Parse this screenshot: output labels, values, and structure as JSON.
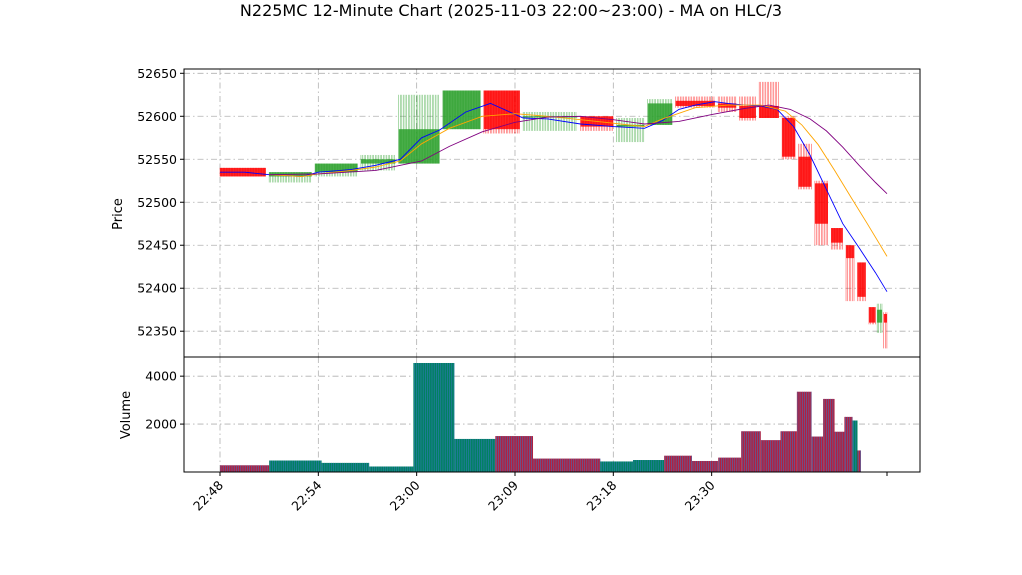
{
  "chart_data": [
    {
      "type": "candlestick",
      "title": "N225MC 12-Minute Chart (2025-11-03 22:00~23:00) - MA on HLC/3",
      "ylabel": "Price",
      "ylim": [
        52320,
        52655
      ],
      "yticks": [
        52350,
        52400,
        52450,
        52500,
        52550,
        52600,
        52650
      ],
      "grid": true,
      "x_ticks": [
        {
          "time": "22:48",
          "bar": 0
        },
        {
          "time": "22:54",
          "bar": 6
        },
        {
          "time": "23:00",
          "bar": 12
        },
        {
          "time": "23:09",
          "bar": 18
        },
        {
          "time": "23:18",
          "bar": 24
        },
        {
          "time": "23:30",
          "bar": 30
        }
      ],
      "up_color": "#2ca02c",
      "down_color": "#ff0000",
      "ma_colors": [
        "#0000ff",
        "#ffa500",
        "#800080"
      ],
      "candles": [
        {
          "from": 0.0,
          "to": 2.8,
          "open": 52540,
          "high": 52540,
          "low": 52530,
          "close": 52530
        },
        {
          "from": 3.0,
          "to": 5.6,
          "open": 52530,
          "high": 52535,
          "low": 52523,
          "close": 52535
        },
        {
          "from": 5.8,
          "to": 8.4,
          "open": 52535,
          "high": 52545,
          "low": 52530,
          "close": 52545
        },
        {
          "from": 8.6,
          "to": 10.7,
          "open": 52545,
          "high": 52555,
          "low": 52537,
          "close": 52550
        },
        {
          "from": 10.9,
          "to": 13.4,
          "open": 52545,
          "high": 52625,
          "low": 52545,
          "close": 52585
        },
        {
          "from": 13.6,
          "to": 15.9,
          "open": 52585,
          "high": 52630,
          "low": 52585,
          "close": 52630
        },
        {
          "from": 16.1,
          "to": 18.3,
          "open": 52630,
          "high": 52630,
          "low": 52580,
          "close": 52585
        },
        {
          "from": 18.5,
          "to": 21.8,
          "open": 52600,
          "high": 52605,
          "low": 52583,
          "close": 52600
        },
        {
          "from": 22.0,
          "to": 24.0,
          "open": 52600,
          "high": 52600,
          "low": 52583,
          "close": 52588
        },
        {
          "from": 24.2,
          "to": 25.9,
          "open": 52588,
          "high": 52598,
          "low": 52570,
          "close": 52590
        },
        {
          "from": 26.1,
          "to": 27.6,
          "open": 52590,
          "high": 52620,
          "low": 52590,
          "close": 52615
        },
        {
          "from": 27.8,
          "to": 30.2,
          "open": 52618,
          "high": 52623,
          "low": 52610,
          "close": 52612
        },
        {
          "from": 30.4,
          "to": 31.5,
          "open": 52615,
          "high": 52623,
          "low": 52605,
          "close": 52610
        },
        {
          "from": 31.7,
          "to": 32.7,
          "open": 52612,
          "high": 52623,
          "low": 52595,
          "close": 52598
        },
        {
          "from": 32.9,
          "to": 34.1,
          "open": 52612,
          "high": 52640,
          "low": 52598,
          "close": 52598
        },
        {
          "from": 34.3,
          "to": 35.1,
          "open": 52598,
          "high": 52600,
          "low": 52550,
          "close": 52553
        },
        {
          "from": 35.3,
          "to": 36.1,
          "open": 52553,
          "high": 52568,
          "low": 52515,
          "close": 52518
        },
        {
          "from": 36.3,
          "to": 37.1,
          "open": 52522,
          "high": 52525,
          "low": 52450,
          "close": 52475
        },
        {
          "from": 37.3,
          "to": 38.0,
          "open": 52470,
          "high": 52470,
          "low": 52445,
          "close": 52453
        },
        {
          "from": 38.2,
          "to": 38.7,
          "open": 52450,
          "high": 52450,
          "low": 52385,
          "close": 52435
        },
        {
          "from": 38.9,
          "to": 39.4,
          "open": 52430,
          "high": 52430,
          "low": 52385,
          "close": 52390
        },
        {
          "from": 39.6,
          "to": 40.0,
          "open": 52378,
          "high": 52378,
          "low": 52358,
          "close": 52360
        },
        {
          "from": 40.1,
          "to": 40.4,
          "open": 52360,
          "high": 52382,
          "low": 52348,
          "close": 52375
        },
        {
          "from": 40.5,
          "to": 40.7,
          "open": 52370,
          "high": 52372,
          "low": 52330,
          "close": 52360
        }
      ],
      "ma_series": [
        {
          "x": [
            0,
            1.5,
            3,
            5,
            6,
            8,
            9.5,
            11,
            12.3,
            13.4,
            15,
            16.5,
            18.5,
            20,
            22,
            24,
            25.9,
            27,
            28,
            29,
            30.2,
            31,
            32,
            33,
            34,
            35,
            36,
            37,
            38,
            39,
            40,
            40.7
          ],
          "values": [
            52535,
            52535,
            52532,
            52530,
            52535,
            52538,
            52543,
            52550,
            52575,
            52584,
            52605,
            52615,
            52598,
            52597,
            52591,
            52588,
            52586,
            52595,
            52608,
            52613,
            52617,
            52615,
            52613,
            52612,
            52608,
            52588,
            52555,
            52515,
            52475,
            52447,
            52418,
            52396
          ]
        },
        {
          "x": [
            3,
            5,
            6,
            8,
            9.5,
            11,
            12.3,
            14,
            16,
            18,
            20,
            22,
            24,
            25.9,
            27,
            29,
            31,
            33,
            34.5,
            35.5,
            36.5,
            37.5,
            38.5,
            39.5,
            40.7
          ],
          "values": [
            52532,
            52530,
            52533,
            52537,
            52541,
            52548,
            52568,
            52586,
            52600,
            52603,
            52600,
            52596,
            52592,
            52588,
            52597,
            52610,
            52613,
            52613,
            52606,
            52590,
            52567,
            52537,
            52506,
            52475,
            52437
          ]
        },
        {
          "x": [
            3,
            6,
            9.5,
            12.3,
            14,
            16,
            18,
            20,
            22,
            24,
            25.9,
            28,
            30,
            32,
            33.5,
            34.8,
            36,
            37,
            38,
            39,
            40,
            40.7
          ],
          "values": [
            52532,
            52533,
            52537,
            52548,
            52565,
            52582,
            52593,
            52599,
            52600,
            52596,
            52591,
            52594,
            52602,
            52609,
            52613,
            52608,
            52597,
            52583,
            52564,
            52543,
            52523,
            52510
          ]
        }
      ]
    },
    {
      "type": "bar",
      "ylabel": "Volume",
      "ylim": [
        0,
        4800
      ],
      "yticks": [
        2000,
        4000
      ],
      "grid": true,
      "up_fill": "#008060",
      "down_fill": "#b02040",
      "bars": [
        {
          "from": 0.0,
          "to": 3.0,
          "value": 280,
          "dir": "down"
        },
        {
          "from": 3.0,
          "to": 6.2,
          "value": 480,
          "dir": "up"
        },
        {
          "from": 6.2,
          "to": 9.1,
          "value": 380,
          "dir": "up"
        },
        {
          "from": 9.1,
          "to": 11.8,
          "value": 230,
          "dir": "up"
        },
        {
          "from": 11.8,
          "to": 14.3,
          "value": 4550,
          "dir": "up"
        },
        {
          "from": 14.3,
          "to": 16.8,
          "value": 1380,
          "dir": "up"
        },
        {
          "from": 16.8,
          "to": 19.1,
          "value": 1500,
          "dir": "down"
        },
        {
          "from": 19.1,
          "to": 23.2,
          "value": 560,
          "dir": "down"
        },
        {
          "from": 23.2,
          "to": 25.2,
          "value": 440,
          "dir": "up"
        },
        {
          "from": 25.2,
          "to": 27.1,
          "value": 500,
          "dir": "up"
        },
        {
          "from": 27.1,
          "to": 28.8,
          "value": 680,
          "dir": "down"
        },
        {
          "from": 28.8,
          "to": 30.4,
          "value": 460,
          "dir": "down"
        },
        {
          "from": 30.4,
          "to": 31.8,
          "value": 600,
          "dir": "down"
        },
        {
          "from": 31.8,
          "to": 33.0,
          "value": 1700,
          "dir": "down"
        },
        {
          "from": 33.0,
          "to": 34.2,
          "value": 1330,
          "dir": "down"
        },
        {
          "from": 34.2,
          "to": 35.2,
          "value": 1700,
          "dir": "down"
        },
        {
          "from": 35.2,
          "to": 36.1,
          "value": 3350,
          "dir": "down"
        },
        {
          "from": 36.1,
          "to": 36.8,
          "value": 1480,
          "dir": "down"
        },
        {
          "from": 36.8,
          "to": 37.5,
          "value": 3050,
          "dir": "down"
        },
        {
          "from": 37.5,
          "to": 38.1,
          "value": 1680,
          "dir": "down"
        },
        {
          "from": 38.1,
          "to": 38.6,
          "value": 2300,
          "dir": "down"
        },
        {
          "from": 38.6,
          "to": 38.9,
          "value": 2150,
          "dir": "up"
        },
        {
          "from": 38.9,
          "to": 39.1,
          "value": 900,
          "dir": "down"
        }
      ]
    }
  ]
}
